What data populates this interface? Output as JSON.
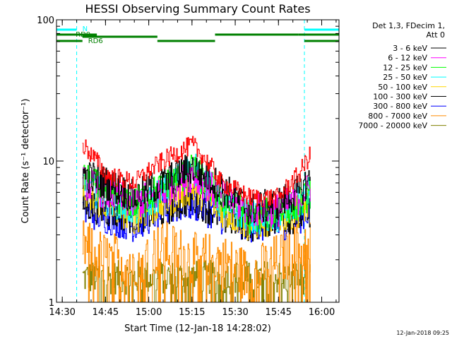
{
  "chart_data": {
    "type": "line",
    "title": "HESSI Observing Summary Count Rates",
    "xlabel": "Start Time (12-Jan-18 14:28:02)",
    "ylabel": "Count Rate (s⁻¹ detector⁻¹)",
    "y_scale": "log",
    "ylim": [
      1,
      100
    ],
    "xlim": [
      "14:28",
      "16:06"
    ],
    "grid": false,
    "legend_placement": "right",
    "x_ticks": [
      "14:30",
      "14:45",
      "15:00",
      "15:15",
      "15:30",
      "15:45",
      "16:00"
    ],
    "y_ticks": [
      "1",
      "10",
      "100"
    ],
    "legend_title": [
      "Det 1,3, FDecim 1,",
      "Att 0"
    ],
    "footer_date": "12-Jan-2018 09:25",
    "data_start": "14:37",
    "data_end": "15:56",
    "series": [
      {
        "name": "3 - 6 keV",
        "color": "#000000",
        "x": [
          "14:37",
          "14:45",
          "14:55",
          "15:05",
          "15:15",
          "15:25",
          "15:35",
          "15:45",
          "15:52",
          "15:56"
        ],
        "y": [
          8.0,
          7.0,
          5.5,
          7.0,
          9.0,
          6.5,
          4.5,
          5.0,
          6.0,
          7.5
        ]
      },
      {
        "name": "6 - 12 keV",
        "color": "#ff00ff",
        "x": [
          "14:37",
          "14:45",
          "14:55",
          "15:05",
          "15:15",
          "15:25",
          "15:35",
          "15:45",
          "15:52",
          "15:56"
        ],
        "y": [
          7.0,
          6.0,
          5.0,
          6.0,
          8.0,
          5.5,
          4.5,
          4.5,
          5.5,
          6.5
        ]
      },
      {
        "name": "12 - 25 keV",
        "color": "#00ff00",
        "x": [
          "14:37",
          "14:45",
          "14:55",
          "15:05",
          "15:15",
          "15:25",
          "15:35",
          "15:45",
          "15:52",
          "15:56"
        ],
        "y": [
          7.5,
          6.0,
          5.0,
          6.5,
          8.5,
          5.5,
          4.0,
          4.5,
          5.0,
          6.0
        ]
      },
      {
        "name": "25 - 50 keV",
        "color": "#00ffff",
        "x": [
          "14:37",
          "14:45",
          "14:55",
          "15:05",
          "15:15",
          "15:25",
          "15:35",
          "15:45",
          "15:52",
          "15:56"
        ],
        "y": [
          7.0,
          5.5,
          4.5,
          6.0,
          9.0,
          5.0,
          4.0,
          4.0,
          5.0,
          6.0
        ]
      },
      {
        "name": "50 - 100 keV",
        "color": "#ffd700",
        "x": [
          "14:37",
          "14:45",
          "14:55",
          "15:05",
          "15:15",
          "15:25",
          "15:35",
          "15:45",
          "15:52",
          "15:56"
        ],
        "y": [
          5.5,
          5.0,
          4.0,
          5.0,
          6.5,
          4.5,
          3.5,
          4.0,
          4.5,
          5.0
        ]
      },
      {
        "name": "100 - 300 keV",
        "color": "#000000",
        "x": [
          "14:37",
          "14:45",
          "14:55",
          "15:05",
          "15:15",
          "15:25",
          "15:35",
          "15:45",
          "15:52",
          "15:56"
        ],
        "y": [
          5.0,
          4.5,
          4.0,
          4.5,
          5.5,
          4.0,
          3.5,
          4.0,
          4.0,
          4.5
        ]
      },
      {
        "name": "300 - 800 keV",
        "color": "#0000ff",
        "x": [
          "14:37",
          "14:45",
          "14:55",
          "15:05",
          "15:15",
          "15:25",
          "15:35",
          "15:45",
          "15:52",
          "15:56"
        ],
        "y": [
          4.5,
          4.0,
          3.5,
          4.5,
          5.0,
          4.0,
          3.5,
          3.5,
          4.0,
          4.5
        ]
      },
      {
        "name": "800 - 7000 keV",
        "color": "#ff8c00",
        "x": [
          "14:37",
          "14:45",
          "14:55",
          "15:05",
          "15:15",
          "15:25",
          "15:35",
          "15:45",
          "15:52",
          "15:56"
        ],
        "y": [
          2.5,
          2.0,
          2.0,
          2.5,
          2.0,
          2.0,
          1.5,
          2.0,
          2.5,
          2.5
        ]
      },
      {
        "name": "7000 - 20000 keV",
        "color": "#808000",
        "x": [
          "14:37",
          "14:45",
          "14:55",
          "15:05",
          "15:15",
          "15:25",
          "15:35",
          "15:45",
          "15:52",
          "15:56"
        ],
        "y": [
          1.5,
          1.5,
          1.5,
          1.5,
          1.5,
          1.5,
          1.5,
          1.5,
          1.5,
          1.5
        ]
      },
      {
        "name": "",
        "color": "#ff0000",
        "x": [
          "14:37",
          "14:45",
          "14:55",
          "15:05",
          "15:15",
          "15:25",
          "15:35",
          "15:45",
          "15:52",
          "15:56"
        ],
        "y": [
          13.0,
          8.0,
          7.0,
          10.0,
          13.0,
          7.0,
          5.5,
          5.5,
          8.0,
          11.0
        ]
      }
    ],
    "night_periods": [
      [
        "14:28",
        "14:35"
      ],
      [
        "15:54",
        "16:06"
      ]
    ],
    "night_label": "N",
    "saa_periods": [],
    "rd_labels": [
      {
        "name": "RD0",
        "segments": [
          [
            "14:28",
            "14:42"
          ],
          [
            "15:52",
            "16:06"
          ]
        ]
      },
      {
        "name": "RD6",
        "segments": [
          [
            "14:28",
            "14:37"
          ],
          [
            "14:37",
            "15:03"
          ],
          [
            "15:03",
            "15:23"
          ],
          [
            "15:23",
            "15:52"
          ],
          [
            "15:54",
            "16:06"
          ]
        ]
      }
    ]
  }
}
